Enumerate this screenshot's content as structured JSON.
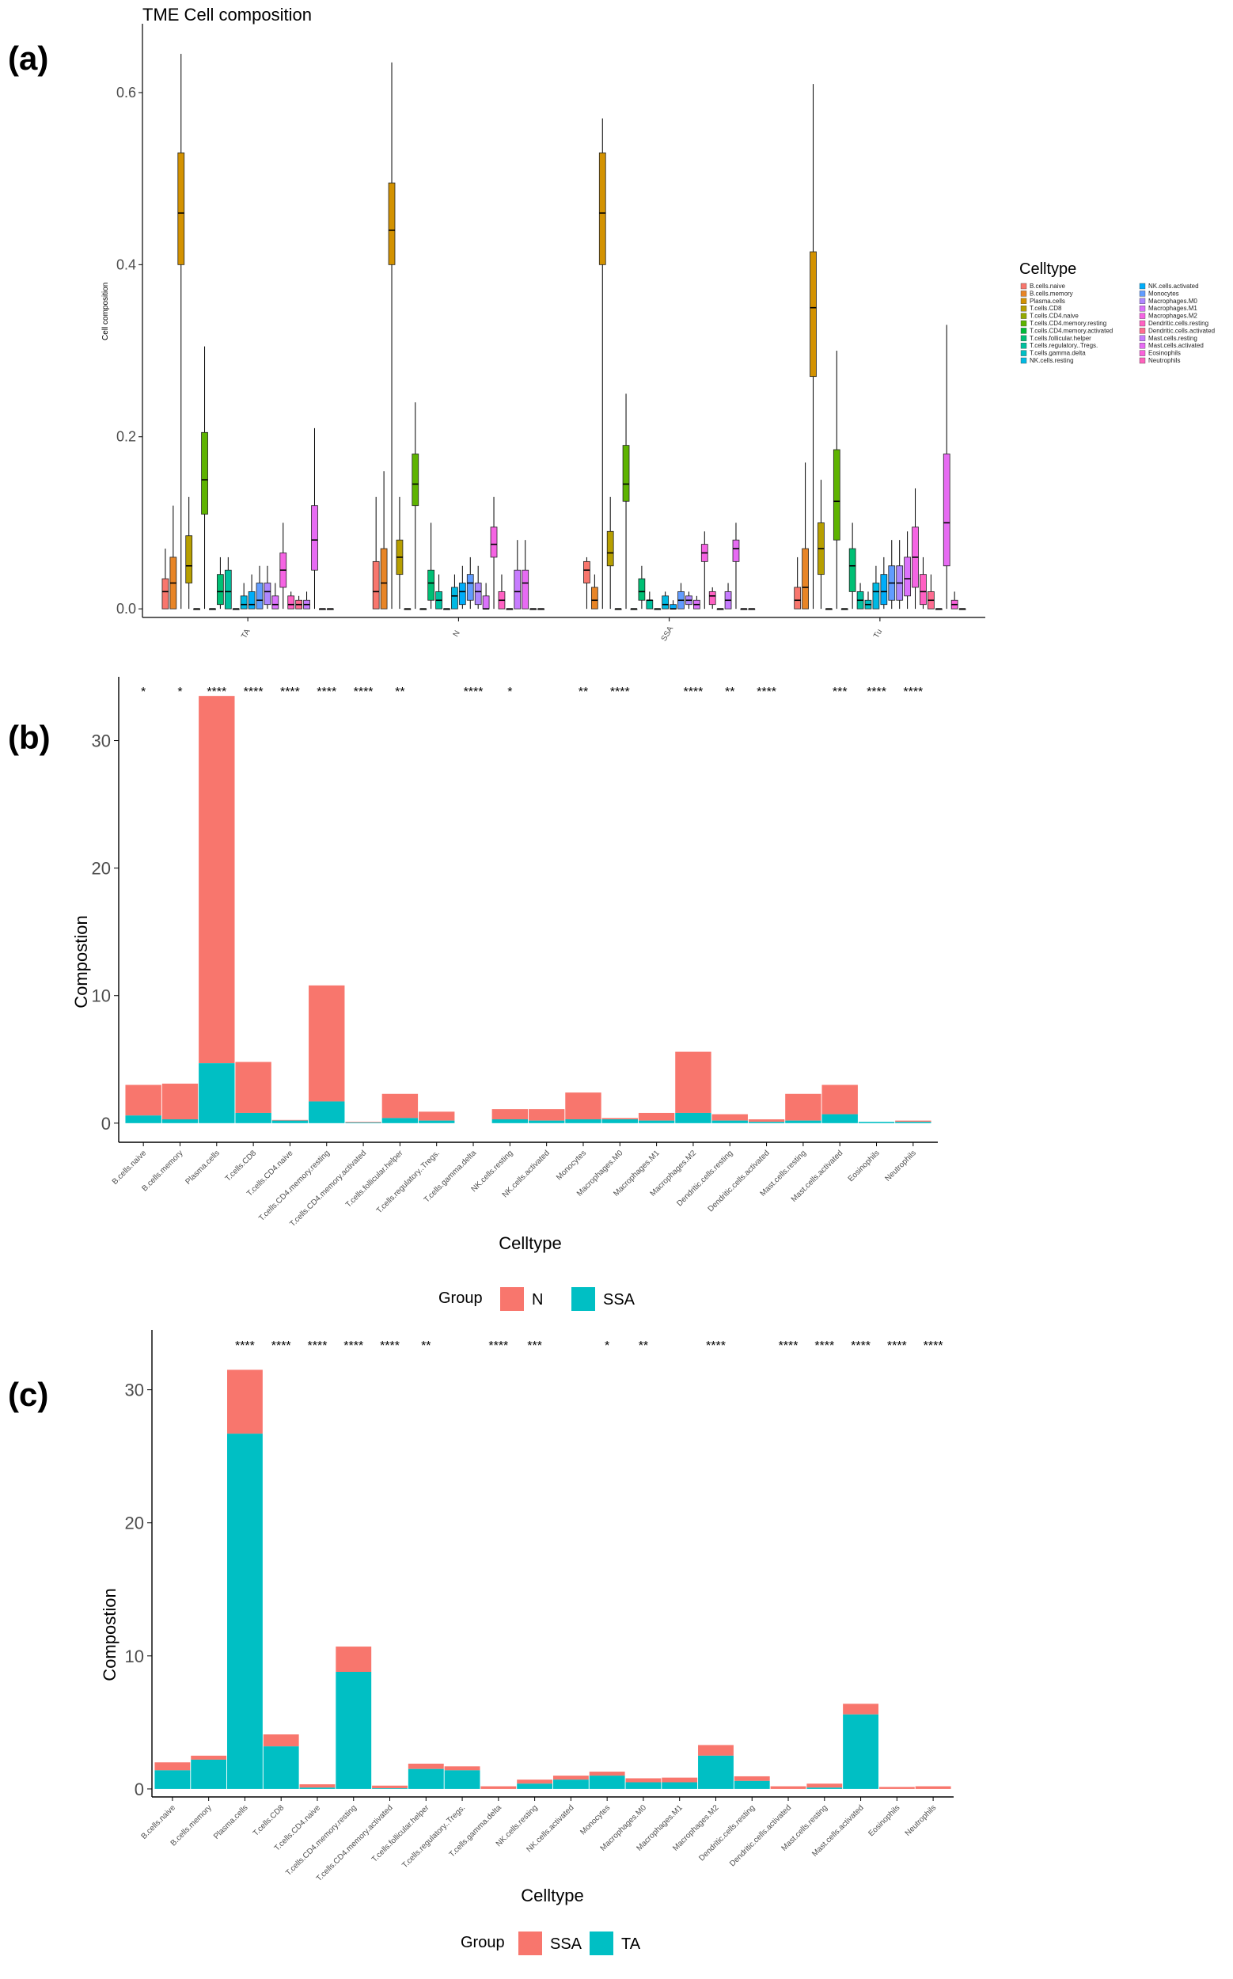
{
  "chart_data": [
    {
      "panel": "(a)",
      "type": "box",
      "title": "TME Cell composition",
      "xlabel": "",
      "ylabel": "Cell composition",
      "ylim": [
        -0.01,
        0.68
      ],
      "yticks": [
        "0.0",
        "0.2",
        "0.4",
        "0.6"
      ],
      "yticks_values": [
        0,
        0.2,
        0.4,
        0.6
      ],
      "groups": [
        "TA",
        "N",
        "SSA",
        "Tu"
      ],
      "legend_title": "Celltype",
      "celltypes": [
        "B.cells.naive",
        "B.cells.memory",
        "Plasma.cells",
        "T.cells.CD8",
        "T.cells.CD4.naive",
        "T.cells.CD4.memory.resting",
        "T.cells.CD4.memory.activated",
        "T.cells.follicular.helper",
        "T.cells.regulatory..Tregs.",
        "T.cells.gamma.delta",
        "NK.cells.resting",
        "NK.cells.activated",
        "Monocytes",
        "Macrophages.M0",
        "Macrophages.M1",
        "Macrophages.M2",
        "Dendritic.cells.resting",
        "Dendritic.cells.activated",
        "Mast.cells.resting",
        "Mast.cells.activated",
        "Eosinophils",
        "Neutrophils"
      ],
      "colors": [
        "#F8766D",
        "#E88526",
        "#D39200",
        "#B79F00",
        "#93AA00",
        "#5EB300",
        "#00BA38",
        "#00BF74",
        "#00C19F",
        "#00BFC4",
        "#00B9E3",
        "#00ADFA",
        "#619CFF",
        "#AE87FF",
        "#DB72FB",
        "#F564E3",
        "#FF61C3",
        "#FF6C91",
        "#C77CFF",
        "#E76BF3",
        "#FA62DB",
        "#FF62BC"
      ],
      "median_by_group": {
        "TA": [
          0.02,
          0.03,
          0.46,
          0.05,
          0.0,
          0.15,
          0.0,
          0.02,
          0.02,
          0.0,
          0.005,
          0.005,
          0.01,
          0.02,
          0.005,
          0.045,
          0.005,
          0.005,
          0.005,
          0.08,
          0.0,
          0.0
        ],
        "N": [
          0.02,
          0.03,
          0.44,
          0.06,
          0.0,
          0.145,
          0.0,
          0.03,
          0.01,
          0.0,
          0.015,
          0.02,
          0.03,
          0.02,
          0.0,
          0.075,
          0.01,
          0.0,
          0.02,
          0.03,
          0.0,
          0.0
        ],
        "SSA": [
          0.045,
          0.01,
          0.46,
          0.065,
          0.0,
          0.145,
          0.0,
          0.02,
          0.01,
          0.0,
          0.005,
          0.0,
          0.01,
          0.01,
          0.005,
          0.065,
          0.015,
          0.0,
          0.01,
          0.07,
          0.0,
          0.0
        ],
        "Tu": [
          0.01,
          0.025,
          0.35,
          0.07,
          0.0,
          0.125,
          0.0,
          0.05,
          0.01,
          0.005,
          0.02,
          0.02,
          0.03,
          0.03,
          0.035,
          0.06,
          0.02,
          0.01,
          0.0,
          0.1,
          0.005,
          0.0
        ]
      },
      "q1_by_group": {
        "TA": [
          0.0,
          0.0,
          0.4,
          0.03,
          0.0,
          0.11,
          0.0,
          0.005,
          0.0,
          0.0,
          0.0,
          0.0,
          0.0,
          0.005,
          0.0,
          0.025,
          0.0,
          0.0,
          0.0,
          0.045,
          0.0,
          0.0
        ],
        "N": [
          0.0,
          0.0,
          0.4,
          0.04,
          0.0,
          0.12,
          0.0,
          0.01,
          0.0,
          0.0,
          0.0,
          0.005,
          0.01,
          0.005,
          0.0,
          0.06,
          0.0,
          0.0,
          0.0,
          0.0,
          0.0,
          0.0
        ],
        "SSA": [
          0.03,
          0.0,
          0.4,
          0.05,
          0.0,
          0.125,
          0.0,
          0.01,
          0.0,
          0.0,
          0.0,
          0.0,
          0.0,
          0.005,
          0.0,
          0.055,
          0.005,
          0.0,
          0.0,
          0.055,
          0.0,
          0.0
        ],
        "Tu": [
          0.0,
          0.0,
          0.27,
          0.04,
          0.0,
          0.08,
          0.0,
          0.02,
          0.0,
          0.0,
          0.0,
          0.005,
          0.01,
          0.01,
          0.015,
          0.025,
          0.005,
          0.0,
          0.0,
          0.05,
          0.0,
          0.0
        ]
      },
      "q3_by_group": {
        "TA": [
          0.035,
          0.06,
          0.53,
          0.085,
          0.0,
          0.205,
          0.0,
          0.04,
          0.045,
          0.0,
          0.015,
          0.02,
          0.03,
          0.03,
          0.015,
          0.065,
          0.015,
          0.01,
          0.01,
          0.12,
          0.0,
          0.0
        ],
        "N": [
          0.055,
          0.07,
          0.495,
          0.08,
          0.0,
          0.18,
          0.0,
          0.045,
          0.02,
          0.0,
          0.025,
          0.03,
          0.04,
          0.03,
          0.015,
          0.095,
          0.02,
          0.0,
          0.045,
          0.045,
          0.0,
          0.0
        ],
        "SSA": [
          0.055,
          0.025,
          0.53,
          0.09,
          0.0,
          0.19,
          0.0,
          0.035,
          0.01,
          0.0,
          0.015,
          0.005,
          0.02,
          0.015,
          0.01,
          0.075,
          0.02,
          0.0,
          0.02,
          0.08,
          0.0,
          0.0
        ],
        "Tu": [
          0.025,
          0.07,
          0.415,
          0.1,
          0.0,
          0.185,
          0.0,
          0.07,
          0.02,
          0.01,
          0.03,
          0.04,
          0.05,
          0.05,
          0.06,
          0.095,
          0.04,
          0.02,
          0.0,
          0.18,
          0.01,
          0.0
        ]
      },
      "max_by_group": {
        "TA": [
          0.07,
          0.12,
          0.645,
          0.13,
          0.0,
          0.305,
          0.0,
          0.06,
          0.06,
          0.0,
          0.03,
          0.04,
          0.05,
          0.05,
          0.03,
          0.1,
          0.02,
          0.015,
          0.02,
          0.21,
          0.0,
          0.0
        ],
        "N": [
          0.13,
          0.16,
          0.635,
          0.13,
          0.0,
          0.24,
          0.0,
          0.1,
          0.04,
          0.0,
          0.04,
          0.05,
          0.06,
          0.05,
          0.03,
          0.13,
          0.04,
          0.0,
          0.08,
          0.08,
          0.0,
          0.0
        ],
        "SSA": [
          0.06,
          0.04,
          0.57,
          0.13,
          0.0,
          0.25,
          0.0,
          0.05,
          0.02,
          0.0,
          0.02,
          0.01,
          0.03,
          0.02,
          0.015,
          0.09,
          0.025,
          0.0,
          0.03,
          0.1,
          0.0,
          0.0
        ],
        "Tu": [
          0.06,
          0.17,
          0.61,
          0.15,
          0.0,
          0.3,
          0.0,
          0.1,
          0.03,
          0.02,
          0.05,
          0.06,
          0.08,
          0.08,
          0.09,
          0.14,
          0.06,
          0.04,
          0.0,
          0.33,
          0.02,
          0.0
        ]
      }
    },
    {
      "panel": "(b)",
      "type": "bar",
      "stacked": true,
      "xlabel": "Celltype",
      "ylabel": "Compostion",
      "ylim": [
        -1.5,
        35
      ],
      "yticks": [
        "0",
        "10",
        "20",
        "30"
      ],
      "yticks_values": [
        0,
        10,
        20,
        30
      ],
      "categories": [
        "B.cells.naive",
        "B.cells.memory",
        "Plasma.cells",
        "T.cells.CD8",
        "T.cells.CD4.naive",
        "T.cells.CD4.memory.resting",
        "T.cells.CD4.memory.activated",
        "T.cells.follicular.helper",
        "T.cells.regulatory..Tregs.",
        "T.cells.gamma.delta",
        "NK.cells.resting",
        "NK.cells.activated",
        "Monocytes",
        "Macrophages.M0",
        "Macrophages.M1",
        "Macrophages.M2",
        "Dendritic.cells.resting",
        "Dendritic.cells.activated",
        "Mast.cells.resting",
        "Mast.cells.activated",
        "Eosinophils",
        "Neutrophils"
      ],
      "significance": [
        "*",
        "*",
        "****",
        "****",
        "****",
        "****",
        "****",
        "**",
        "",
        "****",
        "*",
        "",
        "**",
        "****",
        "",
        "****",
        "**",
        "****",
        "",
        "***",
        "****",
        "****"
      ],
      "legend_title": "Group",
      "series": [
        {
          "name": "N",
          "color": "#F8766D",
          "values": [
            2.4,
            2.8,
            28.8,
            4.0,
            0.05,
            9.1,
            0.05,
            1.9,
            0.7,
            0.0,
            0.8,
            0.9,
            2.1,
            0.1,
            0.6,
            4.8,
            0.5,
            0.2,
            2.1,
            2.3,
            0.0,
            0.1
          ]
        },
        {
          "name": "SSA",
          "color": "#00BFC4",
          "values": [
            0.6,
            0.3,
            4.7,
            0.8,
            0.2,
            1.7,
            0.05,
            0.4,
            0.2,
            0.0,
            0.3,
            0.2,
            0.3,
            0.3,
            0.2,
            0.8,
            0.2,
            0.1,
            0.2,
            0.7,
            0.1,
            0.1
          ]
        }
      ]
    },
    {
      "panel": "(c)",
      "type": "bar",
      "stacked": true,
      "xlabel": "Celltype",
      "ylabel": "Compostion",
      "ylim": [
        -0.6,
        34.5
      ],
      "yticks": [
        "0",
        "10",
        "20",
        "30"
      ],
      "yticks_values": [
        0,
        10,
        20,
        30
      ],
      "categories": [
        "B.cells.naive",
        "B.cells.memory",
        "Plasma.cells",
        "T.cells.CD8",
        "T.cells.CD4.naive",
        "T.cells.CD4.memory.resting",
        "T.cells.CD4.memory.activated",
        "T.cells.follicular.helper",
        "T.cells.regulatory..Tregs.",
        "T.cells.gamma.delta",
        "NK.cells.resting",
        "NK.cells.activated",
        "Monocytes",
        "Macrophages.M0",
        "Macrophages.M1",
        "Macrophages.M2",
        "Dendritic.cells.resting",
        "Dendritic.cells.activated",
        "Mast.cells.resting",
        "Mast.cells.activated",
        "Eosinophils",
        "Neutrophils"
      ],
      "significance": [
        "",
        "",
        "****",
        "****",
        "****",
        "****",
        "****",
        "**",
        "",
        "****",
        "***",
        "",
        "*",
        "**",
        "",
        "****",
        "",
        "****",
        "****",
        "****",
        "****",
        "****"
      ],
      "legend_title": "Group",
      "series": [
        {
          "name": "SSA",
          "color": "#F8766D",
          "values": [
            0.6,
            0.3,
            4.8,
            0.9,
            0.25,
            1.9,
            0.2,
            0.4,
            0.3,
            0.2,
            0.3,
            0.3,
            0.3,
            0.3,
            0.35,
            0.8,
            0.35,
            0.2,
            0.3,
            0.8,
            0.15,
            0.2
          ]
        },
        {
          "name": "TA",
          "color": "#00BFC4",
          "values": [
            1.4,
            2.2,
            26.7,
            3.2,
            0.1,
            8.8,
            0.05,
            1.5,
            1.4,
            0.0,
            0.4,
            0.7,
            1.0,
            0.5,
            0.5,
            2.5,
            0.6,
            0.0,
            0.1,
            5.6,
            0.0,
            0.0
          ]
        }
      ]
    }
  ]
}
